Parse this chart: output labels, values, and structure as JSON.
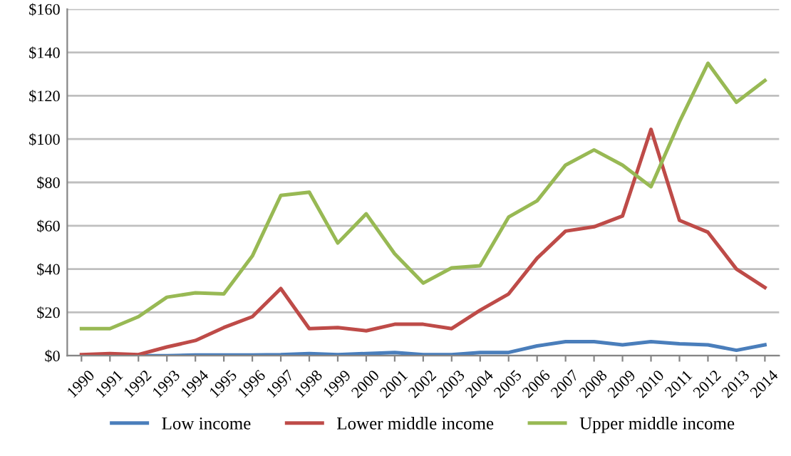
{
  "chart_data": {
    "type": "line",
    "categories": [
      "1990",
      "1991",
      "1992",
      "1993",
      "1994",
      "1995",
      "1996",
      "1997",
      "1998",
      "1999",
      "2000",
      "2001",
      "2002",
      "2003",
      "2004",
      "2005",
      "2006",
      "2007",
      "2008",
      "2009",
      "2010",
      "2011",
      "2012",
      "2013",
      "2014"
    ],
    "series": [
      {
        "name": "Low income",
        "color": "#4a7ebb",
        "values": [
          0,
          0.5,
          0,
          0,
          0.3,
          0.3,
          0.3,
          0.5,
          1,
          0.5,
          1,
          1.5,
          0.5,
          0.5,
          1.5,
          1.5,
          4.5,
          6.5,
          6.5,
          5,
          6.5,
          5.5,
          5,
          2.5,
          5
        ]
      },
      {
        "name": "Lower middle income",
        "color": "#be4b48",
        "values": [
          0.5,
          1,
          0.5,
          4,
          7,
          13,
          18,
          31,
          12.5,
          13,
          11.5,
          14.5,
          14.5,
          12.5,
          21,
          28.5,
          45,
          57.5,
          59.5,
          64.5,
          104.5,
          62.5,
          57,
          40,
          31.5
        ]
      },
      {
        "name": "Upper middle income",
        "color": "#98b954",
        "values": [
          12.5,
          12.5,
          18,
          27,
          29,
          28.5,
          46,
          74,
          75.5,
          52,
          65.5,
          47,
          33.5,
          40.5,
          41.5,
          64,
          71.5,
          88,
          95,
          88,
          78,
          108,
          135,
          117,
          127
        ]
      }
    ],
    "ylim": [
      0,
      160
    ],
    "yticks": [
      {
        "value": 0,
        "label": "$0"
      },
      {
        "value": 20,
        "label": "$20"
      },
      {
        "value": 40,
        "label": "$40"
      },
      {
        "value": 60,
        "label": "$60"
      },
      {
        "value": 80,
        "label": "$80"
      },
      {
        "value": 100,
        "label": "$100"
      },
      {
        "value": 120,
        "label": "$120"
      },
      {
        "value": 140,
        "label": "$140"
      },
      {
        "value": 160,
        "label": "$160"
      }
    ],
    "grid": "y",
    "legend": "bottom",
    "marker": "none",
    "line_style": "solid"
  }
}
